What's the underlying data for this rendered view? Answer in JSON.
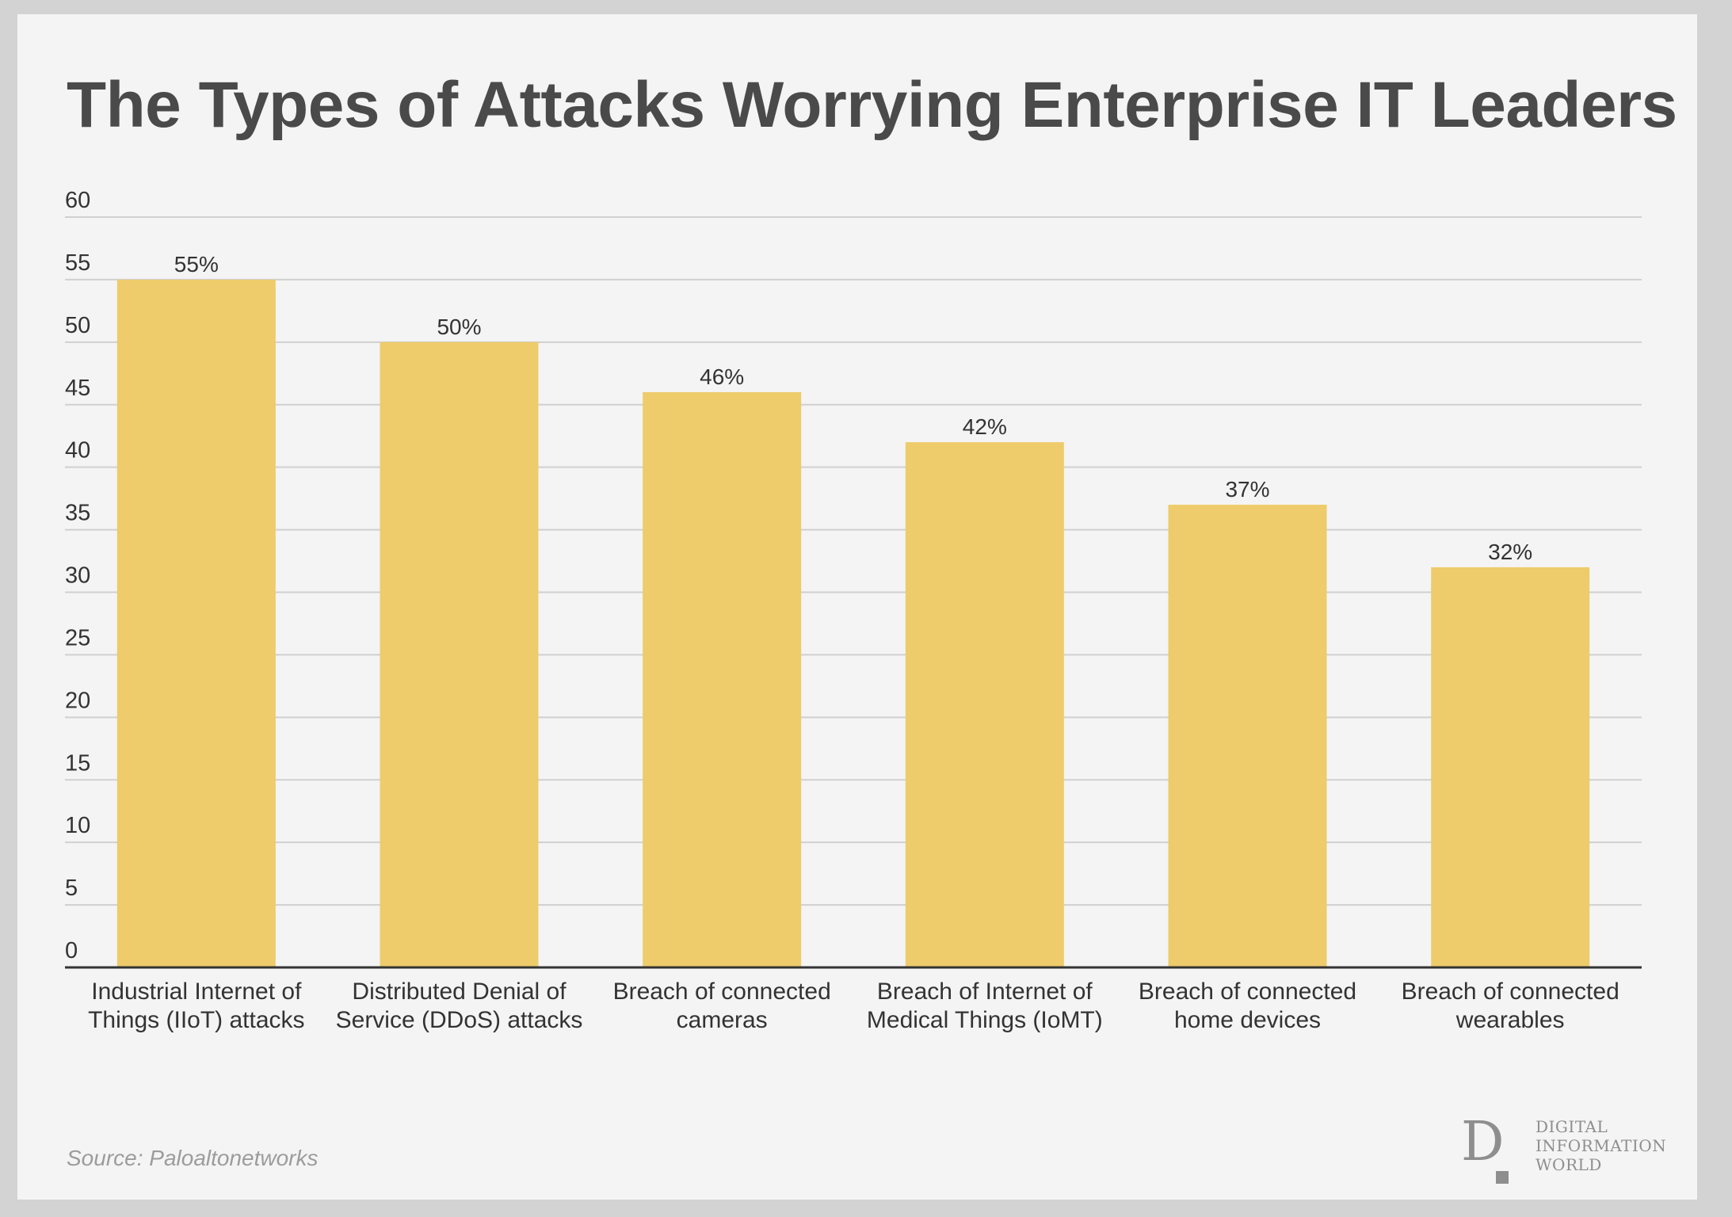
{
  "title": "The Types of Attacks Worrying Enterprise IT Leaders",
  "source": "Source: Paloaltonetworks",
  "brand": {
    "mark": "D",
    "lines": [
      "DIGITAL",
      "INFORMATION",
      "WORLD"
    ]
  },
  "colors": {
    "bar": "#eecb6b",
    "grid": "#d0d0d0",
    "axis": "#333333",
    "text": "#333333"
  },
  "chart_data": {
    "type": "bar",
    "title": "The Types of Attacks Worrying Enterprise IT Leaders",
    "xlabel": "",
    "ylabel": "",
    "ylim": [
      0,
      60
    ],
    "yticks": [
      0,
      5,
      10,
      15,
      20,
      25,
      30,
      35,
      40,
      45,
      50,
      55,
      60
    ],
    "grid": true,
    "categories": [
      [
        "Industrial Internet of",
        "Things (IIoT) attacks"
      ],
      [
        "Distributed Denial of",
        "Service (DDoS) attacks"
      ],
      [
        "Breach of connected",
        "cameras"
      ],
      [
        "Breach of Internet of",
        "Medical Things (IoMT)"
      ],
      [
        "Breach of connected",
        "home devices"
      ],
      [
        "Breach of connected",
        "wearables"
      ]
    ],
    "values": [
      55,
      50,
      46,
      42,
      37,
      32
    ],
    "value_labels": [
      "55%",
      "50%",
      "46%",
      "42%",
      "37%",
      "32%"
    ]
  }
}
